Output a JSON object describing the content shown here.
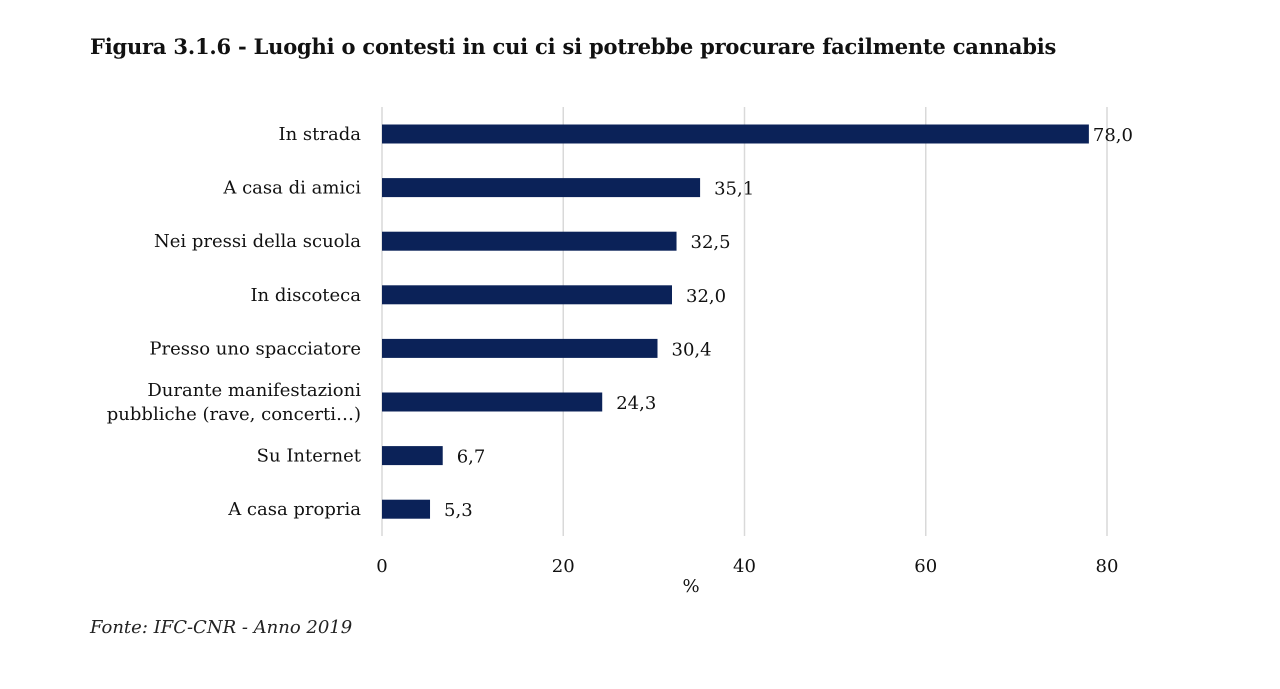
{
  "figure": {
    "title": "Figura 3.1.6 - Luoghi o contesti in cui ci si potrebbe procurare facilmente cannabis",
    "source": "Fonte: IFC-CNR - Anno 2019"
  },
  "chart_data": {
    "type": "bar",
    "orientation": "horizontal",
    "title": "Figura 3.1.6 - Luoghi o contesti in cui ci si potrebbe procurare facilmente cannabis",
    "categories": [
      [
        "In strada"
      ],
      [
        "A casa di amici"
      ],
      [
        "Nei pressi della scuola"
      ],
      [
        "In discoteca"
      ],
      [
        "Presso uno spacciatore"
      ],
      [
        "Durante manifestazioni",
        "pubbliche (rave, concerti…)"
      ],
      [
        "Su Internet"
      ],
      [
        "A casa propria"
      ]
    ],
    "values": [
      78.0,
      35.1,
      32.5,
      32.0,
      30.4,
      24.3,
      6.7,
      5.3
    ],
    "value_labels": [
      "78,0",
      "35,1",
      "32,5",
      "32,0",
      "30,4",
      "24,3",
      "6,7",
      "5,3"
    ],
    "xlabel": "%",
    "ylabel": "",
    "xlim": [
      0,
      80
    ],
    "xticks": [
      0,
      20,
      40,
      60,
      80
    ],
    "grid": true,
    "legend": "none",
    "bar_color": "#0b2258",
    "grid_color": "#d9d9d9"
  }
}
